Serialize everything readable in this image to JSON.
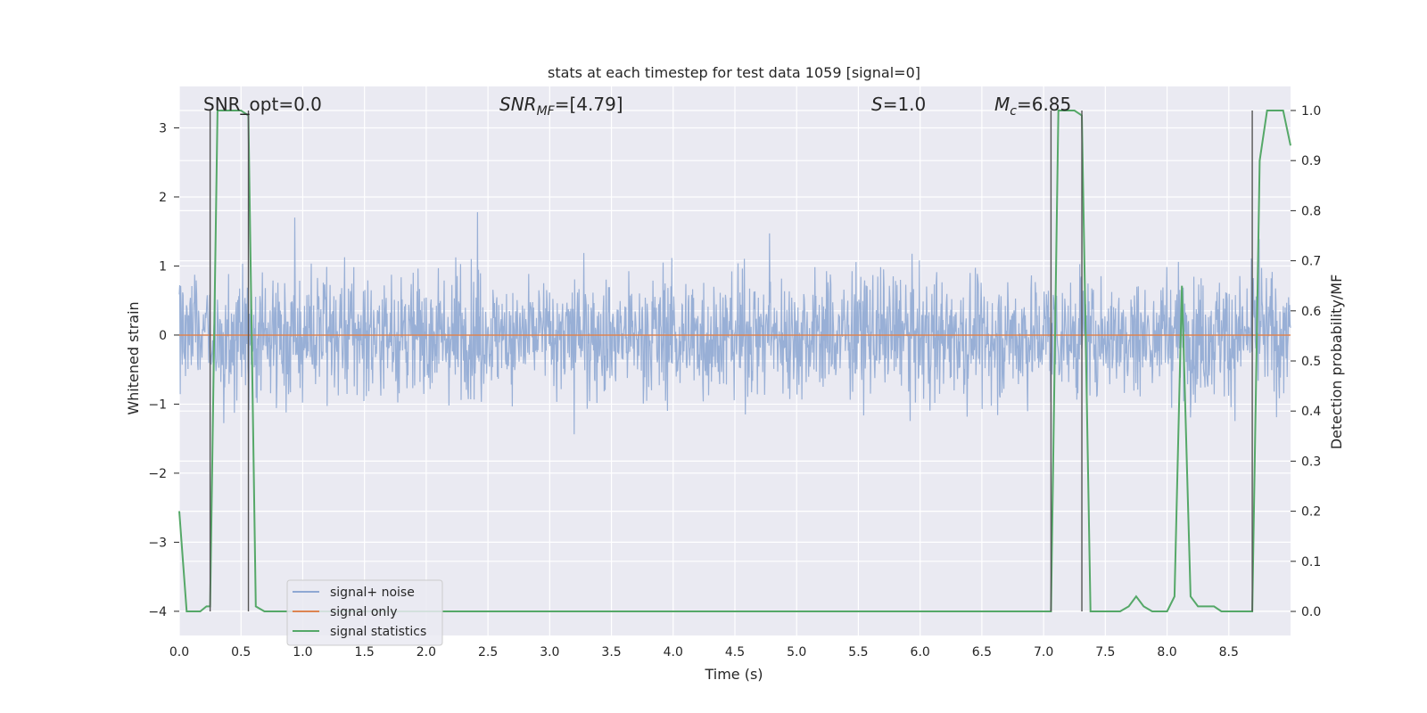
{
  "chart_data": {
    "type": "line",
    "title": "stats at each timestep for test data 1059 [signal=0]",
    "xlabel": "Time (s)",
    "ylabel_left": "Whitened strain",
    "ylabel_right": "Detection probability/MF",
    "xlim": [
      0.0,
      9.0
    ],
    "ylim_left": [
      -4.35,
      3.6
    ],
    "ylim_right": [
      -0.048,
      1.048
    ],
    "x_ticks": [
      "0.0",
      "0.5",
      "1.0",
      "1.5",
      "2.0",
      "2.5",
      "3.0",
      "3.5",
      "4.0",
      "4.5",
      "5.0",
      "5.5",
      "6.0",
      "6.5",
      "7.0",
      "7.5",
      "8.0",
      "8.5"
    ],
    "y_ticks_left": [
      "−4",
      "−3",
      "−2",
      "−1",
      "0",
      "1",
      "2",
      "3"
    ],
    "y_ticks_right": [
      "0.0",
      "0.1",
      "0.2",
      "0.3",
      "0.4",
      "0.5",
      "0.6",
      "0.7",
      "0.8",
      "0.9",
      "1.0"
    ],
    "grid": true,
    "legend_position": "lower-left",
    "annotations": {
      "snr_opt": "SNR_opt=0.0",
      "snr_mf_main": "SNR",
      "snr_mf_sub": "MF",
      "snr_mf_rest": "=[4.79]",
      "s_main": "S",
      "s_rest": "=1.0",
      "mc_main": "M",
      "mc_sub": "c",
      "mc_rest": "=6.85"
    },
    "series": [
      {
        "name": "signal+ noise",
        "color": "#8fa8d3",
        "description_range": [
          -4.0,
          3.2
        ],
        "envelope_typical": [
          -1.8,
          1.8
        ]
      },
      {
        "name": "signal only",
        "color": "#dd8452",
        "x": [
          0.0,
          9.0
        ],
        "y": [
          0.0,
          0.0
        ]
      },
      {
        "name": "signal statistics",
        "color": "#55a868",
        "axis": "right",
        "x": [
          0.0,
          0.06,
          0.17,
          0.22,
          0.25,
          0.31,
          0.38,
          0.44,
          0.5,
          0.56,
          0.62,
          0.69,
          0.75,
          7.06,
          7.12,
          7.19,
          7.25,
          7.31,
          7.38,
          7.44,
          7.5,
          7.56,
          7.62,
          7.69,
          7.75,
          7.81,
          7.88,
          7.94,
          8.0,
          8.06,
          8.12,
          8.19,
          8.25,
          8.31,
          8.38,
          8.44,
          8.5,
          8.56,
          8.62,
          8.69,
          8.75,
          8.81,
          8.88,
          8.94,
          9.0
        ],
        "y": [
          0.2,
          0.0,
          0.0,
          0.01,
          0.01,
          1.0,
          1.0,
          1.0,
          1.0,
          0.99,
          0.01,
          0.0,
          0.0,
          0.0,
          1.0,
          1.0,
          1.0,
          0.99,
          0.0,
          0.0,
          0.0,
          0.0,
          0.0,
          0.01,
          0.03,
          0.01,
          0.0,
          0.0,
          0.0,
          0.03,
          0.65,
          0.03,
          0.01,
          0.01,
          0.01,
          0.0,
          0.0,
          0.0,
          0.0,
          0.0,
          0.9,
          1.0,
          1.0,
          1.0,
          0.93
        ]
      }
    ],
    "vertical_markers_x": [
      0.25,
      0.56,
      7.06,
      7.31,
      8.69
    ]
  }
}
